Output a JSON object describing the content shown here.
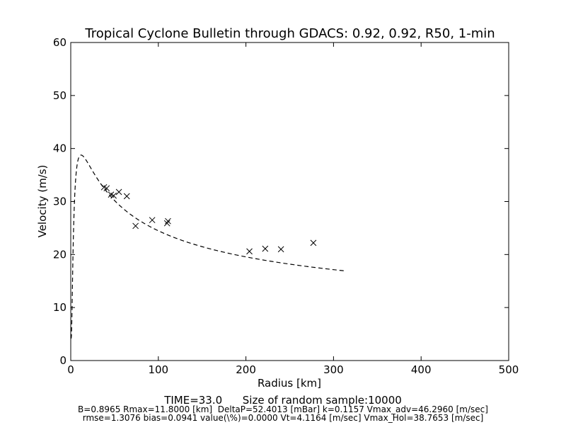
{
  "chart_data": {
    "type": "scatter",
    "title": "Tropical Cyclone Bulletin through GDACS: 0.92, 0.92, R50, 1-min",
    "xlabel": "Radius [km]",
    "ylabel": "Velocity (m/s)",
    "xlim": [
      0,
      500
    ],
    "ylim": [
      0,
      60
    ],
    "xticks": [
      0,
      100,
      200,
      300,
      400,
      500
    ],
    "yticks": [
      0,
      10,
      20,
      30,
      40,
      50,
      60
    ],
    "grid": false,
    "observations": {
      "marker": "x",
      "points": [
        [
          38,
          32.7
        ],
        [
          41,
          32.5
        ],
        [
          46,
          31.3
        ],
        [
          49,
          31.1
        ],
        [
          55,
          31.8
        ],
        [
          64,
          31.0
        ],
        [
          74,
          25.4
        ],
        [
          93,
          26.5
        ],
        [
          110,
          25.9
        ],
        [
          111,
          26.3
        ],
        [
          204,
          20.6
        ],
        [
          222,
          21.1
        ],
        [
          240,
          21.0
        ],
        [
          277,
          22.2
        ]
      ]
    },
    "fit_curve": {
      "style": "dashed",
      "B": 0.8965,
      "Rmax_km": 11.8,
      "DeltaP_mbar": 52.4013,
      "Vt": 4.1164,
      "Vmax": 38.7653,
      "r_min": 0.5,
      "r_max": 312
    }
  },
  "footer": {
    "line1": "TIME=33.0      Size of random sample:10000",
    "line2": "B=0.8965 Rmax=11.8000 [km]  DeltaP=52.4013 [mBar] k=0.1157 Vmax_adv=46.2960 [m/sec]",
    "line3": "rmse=1.3076 bias=0.0941 value(\\%)=0.0000 Vt=4.1164 [m/sec] Vmax_Hol=38.7653 [m/sec]"
  }
}
